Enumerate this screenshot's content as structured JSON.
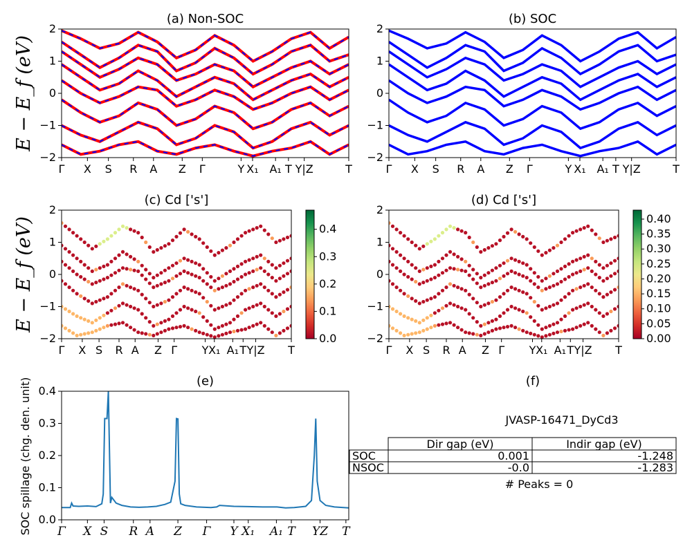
{
  "chart_data": [
    {
      "id": "a",
      "type": "line",
      "title": "(a) Non-SOC",
      "ylabel": "E − E_f (eV)",
      "ylim": [
        -2,
        2
      ],
      "yticks": [
        "2",
        "1",
        "0",
        "−1",
        "−2"
      ],
      "kpath_labels": [
        "Γ",
        "X",
        "S",
        "R",
        "A",
        "Z",
        "Γ",
        "Y",
        "X₁",
        "A₁",
        "T",
        "Y|Z",
        "T"
      ],
      "series": [
        {
          "values": [
            1.95,
            1.7,
            1.4,
            1.55,
            1.9,
            1.6,
            1.1,
            1.35,
            1.8,
            1.5,
            1.0,
            1.3,
            1.7,
            1.9,
            1.4,
            1.75
          ]
        },
        {
          "values": [
            1.6,
            1.2,
            0.8,
            1.1,
            1.5,
            1.3,
            0.7,
            0.95,
            1.4,
            1.1,
            0.6,
            0.9,
            1.3,
            1.5,
            1.0,
            1.2
          ]
        },
        {
          "values": [
            1.3,
            0.9,
            0.5,
            0.75,
            1.1,
            0.9,
            0.4,
            0.6,
            0.9,
            0.7,
            0.2,
            0.5,
            0.8,
            1.0,
            0.6,
            0.9
          ]
        },
        {
          "values": [
            0.9,
            0.5,
            0.1,
            0.3,
            0.7,
            0.4,
            -0.1,
            0.2,
            0.5,
            0.3,
            -0.2,
            0.1,
            0.4,
            0.6,
            0.2,
            0.5
          ]
        },
        {
          "values": [
            0.4,
            0.0,
            -0.3,
            -0.1,
            0.2,
            0.1,
            -0.4,
            -0.2,
            0.1,
            -0.1,
            -0.5,
            -0.3,
            0.0,
            0.2,
            -0.2,
            0.1
          ]
        },
        {
          "values": [
            -0.2,
            -0.6,
            -0.9,
            -0.7,
            -0.3,
            -0.5,
            -1.0,
            -0.8,
            -0.4,
            -0.6,
            -1.1,
            -0.9,
            -0.5,
            -0.3,
            -0.7,
            -0.4
          ]
        },
        {
          "values": [
            -1.0,
            -1.3,
            -1.5,
            -1.2,
            -0.9,
            -1.1,
            -1.6,
            -1.4,
            -1.0,
            -1.2,
            -1.7,
            -1.5,
            -1.1,
            -0.9,
            -1.3,
            -1.0
          ]
        },
        {
          "values": [
            -1.6,
            -1.9,
            -1.8,
            -1.6,
            -1.5,
            -1.8,
            -1.9,
            -1.7,
            -1.6,
            -1.8,
            -1.95,
            -1.8,
            -1.7,
            -1.5,
            -1.9,
            -1.6
          ]
        }
      ]
    },
    {
      "id": "b",
      "type": "line",
      "title": "(b) SOC",
      "ylim": [
        -2,
        2
      ],
      "yticks": [
        "2",
        "1",
        "0",
        "−1",
        "−2"
      ],
      "kpath_labels": [
        "Γ",
        "X",
        "S",
        "R",
        "A",
        "Z",
        "Γ",
        "Y",
        "X₁",
        "A₁",
        "T",
        "Y|Z",
        "T"
      ],
      "series": [
        {
          "values": [
            1.95,
            1.7,
            1.4,
            1.55,
            1.9,
            1.6,
            1.1,
            1.35,
            1.8,
            1.5,
            1.0,
            1.3,
            1.7,
            1.9,
            1.4,
            1.75
          ]
        },
        {
          "values": [
            1.6,
            1.2,
            0.8,
            1.1,
            1.5,
            1.3,
            0.7,
            0.95,
            1.4,
            1.1,
            0.6,
            0.9,
            1.3,
            1.5,
            1.0,
            1.2
          ]
        },
        {
          "values": [
            1.3,
            0.9,
            0.5,
            0.75,
            1.1,
            0.9,
            0.4,
            0.6,
            0.9,
            0.7,
            0.2,
            0.5,
            0.8,
            1.0,
            0.6,
            0.9
          ]
        },
        {
          "values": [
            0.9,
            0.5,
            0.1,
            0.3,
            0.7,
            0.4,
            -0.1,
            0.2,
            0.5,
            0.3,
            -0.2,
            0.1,
            0.4,
            0.6,
            0.2,
            0.5
          ]
        },
        {
          "values": [
            0.4,
            0.0,
            -0.3,
            -0.1,
            0.2,
            0.1,
            -0.4,
            -0.2,
            0.1,
            -0.1,
            -0.5,
            -0.3,
            0.0,
            0.2,
            -0.2,
            0.1
          ]
        },
        {
          "values": [
            -0.2,
            -0.6,
            -0.9,
            -0.7,
            -0.3,
            -0.5,
            -1.0,
            -0.8,
            -0.4,
            -0.6,
            -1.1,
            -0.9,
            -0.5,
            -0.3,
            -0.7,
            -0.4
          ]
        },
        {
          "values": [
            -1.0,
            -1.3,
            -1.5,
            -1.2,
            -0.9,
            -1.1,
            -1.6,
            -1.4,
            -1.0,
            -1.2,
            -1.7,
            -1.5,
            -1.1,
            -0.9,
            -1.3,
            -1.0
          ]
        },
        {
          "values": [
            -1.6,
            -1.9,
            -1.8,
            -1.6,
            -1.5,
            -1.8,
            -1.9,
            -1.7,
            -1.6,
            -1.8,
            -1.95,
            -1.8,
            -1.7,
            -1.5,
            -1.9,
            -1.6
          ]
        }
      ]
    },
    {
      "id": "c",
      "type": "scatter",
      "title": "(c)  Cd ['s']",
      "ylabel": "E − E_f (eV)",
      "ylim": [
        -2,
        2
      ],
      "yticks": [
        "2",
        "1",
        "0",
        "−1",
        "−2"
      ],
      "kpath_labels": [
        "Γ",
        "X",
        "S",
        "R",
        "A",
        "Z",
        "Γ",
        "Y",
        "X₁",
        "A₁",
        "T",
        "Y|Z",
        "T"
      ],
      "colorbar": {
        "range": [
          0.0,
          0.47
        ],
        "ticks": [
          "0.4",
          "0.3",
          "0.2",
          "0.1",
          "0.0"
        ],
        "colormap": "RdYlGn"
      },
      "bands": [
        {
          "values": [
            1.6,
            1.2,
            0.8,
            1.1,
            1.5,
            1.3,
            0.7,
            0.95,
            1.4,
            1.1,
            0.6,
            0.9,
            1.3,
            1.5,
            1.0,
            1.2
          ]
        },
        {
          "values": [
            0.9,
            0.5,
            0.1,
            0.3,
            0.7,
            0.4,
            -0.1,
            0.2,
            0.5,
            0.3,
            -0.2,
            0.1,
            0.4,
            0.6,
            0.2,
            0.5
          ]
        },
        {
          "values": [
            0.4,
            0.0,
            -0.3,
            -0.1,
            0.2,
            0.1,
            -0.4,
            -0.2,
            0.1,
            -0.1,
            -0.5,
            -0.3,
            0.0,
            0.2,
            -0.2,
            0.1
          ]
        },
        {
          "values": [
            -0.2,
            -0.6,
            -0.9,
            -0.7,
            -0.3,
            -0.5,
            -1.0,
            -0.8,
            -0.4,
            -0.6,
            -1.1,
            -0.9,
            -0.5,
            -0.3,
            -0.7,
            -0.4
          ]
        },
        {
          "values": [
            -1.0,
            -1.3,
            -1.5,
            -1.2,
            -0.9,
            -1.1,
            -1.6,
            -1.4,
            -1.0,
            -1.2,
            -1.7,
            -1.5,
            -1.1,
            -0.9,
            -1.3,
            -1.0
          ]
        },
        {
          "values": [
            -1.6,
            -1.9,
            -1.8,
            -1.6,
            -1.5,
            -1.8,
            -1.9,
            -1.7,
            -1.6,
            -1.8,
            -1.95,
            -1.8,
            -1.7,
            -1.5,
            -1.9,
            -1.6
          ]
        }
      ]
    },
    {
      "id": "d",
      "type": "scatter",
      "title": "(d) Cd ['s']",
      "ylim": [
        -2,
        2
      ],
      "yticks": [
        "2",
        "1",
        "0",
        "−1",
        "−2"
      ],
      "kpath_labels": [
        "Γ",
        "X",
        "S",
        "R",
        "A",
        "Z",
        "Γ",
        "Y",
        "X₁",
        "A₁",
        "T",
        "Y|Z",
        "T"
      ],
      "colorbar": {
        "range": [
          0.0,
          0.43
        ],
        "ticks": [
          "0.40",
          "0.35",
          "0.30",
          "0.25",
          "0.20",
          "0.15",
          "0.10",
          "0.05",
          "0.00"
        ],
        "colormap": "RdYlGn"
      },
      "bands": [
        {
          "values": [
            1.6,
            1.2,
            0.8,
            1.1,
            1.5,
            1.3,
            0.7,
            0.95,
            1.4,
            1.1,
            0.6,
            0.9,
            1.3,
            1.5,
            1.0,
            1.2
          ]
        },
        {
          "values": [
            0.9,
            0.5,
            0.1,
            0.3,
            0.7,
            0.4,
            -0.1,
            0.2,
            0.5,
            0.3,
            -0.2,
            0.1,
            0.4,
            0.6,
            0.2,
            0.5
          ]
        },
        {
          "values": [
            0.4,
            0.0,
            -0.3,
            -0.1,
            0.2,
            0.1,
            -0.4,
            -0.2,
            0.1,
            -0.1,
            -0.5,
            -0.3,
            0.0,
            0.2,
            -0.2,
            0.1
          ]
        },
        {
          "values": [
            -0.2,
            -0.6,
            -0.9,
            -0.7,
            -0.3,
            -0.5,
            -1.0,
            -0.8,
            -0.4,
            -0.6,
            -1.1,
            -0.9,
            -0.5,
            -0.3,
            -0.7,
            -0.4
          ]
        },
        {
          "values": [
            -1.0,
            -1.3,
            -1.5,
            -1.2,
            -0.9,
            -1.1,
            -1.6,
            -1.4,
            -1.0,
            -1.2,
            -1.7,
            -1.5,
            -1.1,
            -0.9,
            -1.3,
            -1.0
          ]
        },
        {
          "values": [
            -1.6,
            -1.9,
            -1.8,
            -1.6,
            -1.5,
            -1.8,
            -1.9,
            -1.7,
            -1.6,
            -1.8,
            -1.95,
            -1.8,
            -1.7,
            -1.5,
            -1.9,
            -1.6
          ]
        }
      ]
    },
    {
      "id": "e",
      "type": "line",
      "title": "(e)",
      "ylabel": "SOC spillage (chg. den. unit)",
      "ylim": [
        0.0,
        0.4
      ],
      "yticks": [
        "0.4",
        "0.3",
        "0.2",
        "0.1",
        "0.0"
      ],
      "kpath_labels": [
        "Γ",
        "X",
        "S",
        "R",
        "A",
        "Z",
        "Γ",
        "Y",
        "X₁",
        "A₁",
        "T",
        "YZ",
        "T"
      ],
      "x": [
        0,
        0.03,
        0.035,
        0.04,
        0.06,
        0.09,
        0.12,
        0.14,
        0.145,
        0.15,
        0.158,
        0.163,
        0.17,
        0.175,
        0.19,
        0.21,
        0.24,
        0.27,
        0.3,
        0.33,
        0.36,
        0.38,
        0.395,
        0.4,
        0.405,
        0.41,
        0.415,
        0.43,
        0.47,
        0.52,
        0.54,
        0.55,
        0.6,
        0.65,
        0.7,
        0.75,
        0.78,
        0.81,
        0.85,
        0.87,
        0.88,
        0.885,
        0.89,
        0.9,
        0.92,
        0.95,
        1.0
      ],
      "values": [
        0.038,
        0.038,
        0.052,
        0.043,
        0.042,
        0.043,
        0.041,
        0.05,
        0.08,
        0.315,
        0.315,
        0.4,
        0.052,
        0.07,
        0.052,
        0.045,
        0.04,
        0.039,
        0.04,
        0.042,
        0.048,
        0.055,
        0.12,
        0.315,
        0.314,
        0.08,
        0.05,
        0.045,
        0.04,
        0.038,
        0.04,
        0.045,
        0.042,
        0.041,
        0.04,
        0.04,
        0.037,
        0.038,
        0.042,
        0.06,
        0.2,
        0.315,
        0.12,
        0.06,
        0.045,
        0.04,
        0.037
      ]
    }
  ],
  "panel_f": {
    "title": "(f)",
    "material": "JVASP-16471_DyCd3",
    "table_headers": [
      "",
      "Dir gap (eV)",
      "Indir gap (eV)"
    ],
    "rows": [
      {
        "label": "SOC",
        "dir": "0.001",
        "indir": "-1.248"
      },
      {
        "label": "NSOC",
        "dir": "-0.0",
        "indir": "-1.283"
      }
    ],
    "peaks_text": "# Peaks = 0"
  }
}
